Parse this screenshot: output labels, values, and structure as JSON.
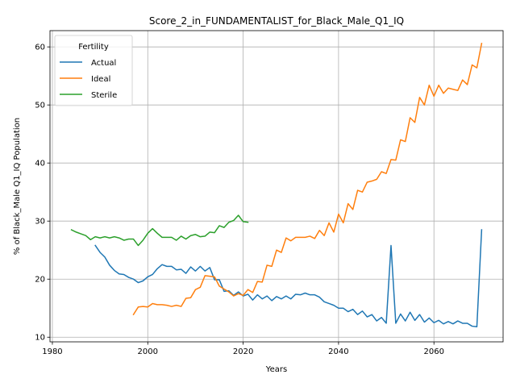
{
  "chart_data": {
    "type": "line",
    "title": "Score_2_in_FUNDAMENTALIST_for_Black_Male_Q1_IQ",
    "xlabel": "Years",
    "ylabel": "% of Black_Male Q1_IQ Population",
    "xlim": [
      1979.5,
      2074.5
    ],
    "ylim": [
      9.2,
      62.8
    ],
    "xticks": [
      1980,
      2000,
      2020,
      2040,
      2060
    ],
    "yticks": [
      10,
      20,
      30,
      40,
      50,
      60
    ],
    "grid": true,
    "legend": {
      "title": "Fertility",
      "position": "top-left"
    },
    "series": [
      {
        "name": "Actual",
        "color": "#1f77b4",
        "x": [
          1989,
          1990,
          1991,
          1992,
          1993,
          1994,
          1995,
          1996,
          1997,
          1998,
          1999,
          2000,
          2001,
          2002,
          2003,
          2004,
          2005,
          2006,
          2007,
          2008,
          2009,
          2010,
          2011,
          2012,
          2013,
          2014,
          2015,
          2016,
          2017,
          2018,
          2019,
          2020,
          2021,
          2022,
          2023,
          2024,
          2025,
          2026,
          2027,
          2028,
          2029,
          2030,
          2031,
          2032,
          2033,
          2034,
          2035,
          2036,
          2037,
          2038,
          2039,
          2040,
          2041,
          2042,
          2043,
          2044,
          2045,
          2046,
          2047,
          2048,
          2049,
          2050,
          2051,
          2052,
          2053,
          2054,
          2055,
          2056,
          2057,
          2058,
          2059,
          2060,
          2061,
          2062,
          2063,
          2064,
          2065,
          2066,
          2067,
          2068,
          2069,
          2070
        ],
        "values": [
          25.8,
          24.6,
          23.8,
          22.4,
          21.5,
          20.9,
          20.8,
          20.3,
          20.0,
          19.4,
          19.7,
          20.4,
          20.8,
          21.8,
          22.5,
          22.2,
          22.2,
          21.6,
          21.7,
          21.0,
          22.1,
          21.4,
          22.2,
          21.4,
          22.0,
          19.9,
          19.9,
          17.9,
          18.0,
          17.2,
          17.8,
          17.1,
          17.4,
          16.4,
          17.3,
          16.6,
          17.1,
          16.3,
          17.0,
          16.6,
          17.1,
          16.6,
          17.4,
          17.3,
          17.6,
          17.3,
          17.3,
          16.9,
          16.1,
          15.8,
          15.5,
          15.0,
          15.0,
          14.4,
          14.8,
          13.9,
          14.5,
          13.5,
          13.9,
          12.8,
          13.4,
          12.4,
          25.8,
          12.4,
          14.0,
          12.8,
          14.3,
          12.9,
          13.9,
          12.6,
          13.3,
          12.5,
          12.9,
          12.3,
          12.7,
          12.3,
          12.8,
          12.4,
          12.4,
          11.9,
          11.8,
          28.5
        ]
      },
      {
        "name": "Ideal",
        "color": "#ff7f0e",
        "x": [
          1997,
          1998,
          1999,
          2000,
          2001,
          2002,
          2003,
          2004,
          2005,
          2006,
          2007,
          2008,
          2009,
          2010,
          2011,
          2012,
          2013,
          2014,
          2015,
          2016,
          2017,
          2018,
          2019,
          2020,
          2021,
          2022,
          2023,
          2024,
          2025,
          2026,
          2027,
          2028,
          2029,
          2030,
          2031,
          2032,
          2033,
          2034,
          2035,
          2036,
          2037,
          2038,
          2039,
          2040,
          2041,
          2042,
          2043,
          2044,
          2045,
          2046,
          2047,
          2048,
          2049,
          2050,
          2051,
          2052,
          2053,
          2054,
          2055,
          2056,
          2057,
          2058,
          2059,
          2060,
          2061,
          2062,
          2063,
          2064,
          2065,
          2066,
          2067,
          2068,
          2069,
          2070
        ],
        "values": [
          13.9,
          15.2,
          15.3,
          15.2,
          15.8,
          15.6,
          15.6,
          15.5,
          15.3,
          15.5,
          15.3,
          16.7,
          16.8,
          18.2,
          18.6,
          20.6,
          20.5,
          20.4,
          18.8,
          18.3,
          17.8,
          17.1,
          17.5,
          17.2,
          18.2,
          17.7,
          19.6,
          19.5,
          22.4,
          22.2,
          25.0,
          24.6,
          27.1,
          26.6,
          27.2,
          27.2,
          27.2,
          27.4,
          27.0,
          28.4,
          27.5,
          29.7,
          28.1,
          31.2,
          29.7,
          33.0,
          32.0,
          35.3,
          35.0,
          36.7,
          36.9,
          37.2,
          38.5,
          38.2,
          40.6,
          40.5,
          44.0,
          43.7,
          47.8,
          47.0,
          51.3,
          50.0,
          53.4,
          51.5,
          53.4,
          52.0,
          52.9,
          52.7,
          52.5,
          54.3,
          53.5,
          56.9,
          56.4,
          60.6
        ]
      },
      {
        "name": "Sterile",
        "color": "#2ca02c",
        "x": [
          1984,
          1985,
          1986,
          1987,
          1988,
          1989,
          1990,
          1991,
          1992,
          1993,
          1994,
          1995,
          1996,
          1997,
          1998,
          1999,
          2000,
          2001,
          2002,
          2003,
          2004,
          2005,
          2006,
          2007,
          2008,
          2009,
          2010,
          2011,
          2012,
          2013,
          2014,
          2015,
          2016,
          2017,
          2018,
          2019,
          2020,
          2021
        ],
        "values": [
          28.5,
          28.1,
          27.8,
          27.5,
          26.8,
          27.3,
          27.1,
          27.3,
          27.1,
          27.3,
          27.1,
          26.7,
          26.9,
          26.9,
          25.8,
          26.7,
          27.9,
          28.7,
          27.9,
          27.2,
          27.2,
          27.2,
          26.7,
          27.4,
          26.9,
          27.5,
          27.7,
          27.3,
          27.4,
          28.1,
          28.0,
          29.2,
          28.9,
          29.8,
          30.1,
          31.0,
          29.9,
          29.8
        ]
      }
    ]
  }
}
